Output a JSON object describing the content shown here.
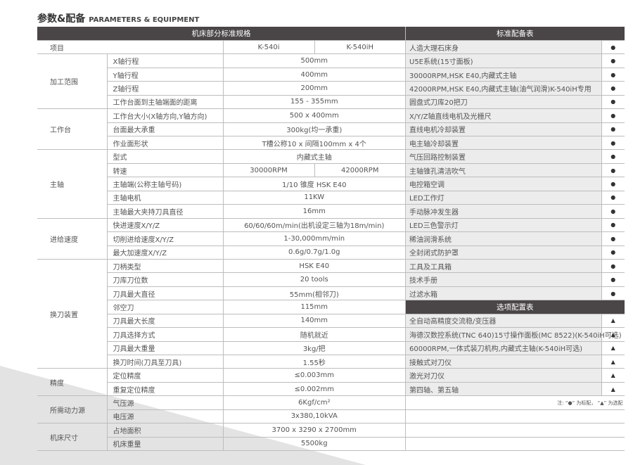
{
  "title": {
    "cn": "参数&配备",
    "en": "PARAMETERS & EQUIPMENT"
  },
  "left": {
    "header": "机床部分标准规格",
    "item_label": "项目",
    "models": [
      "K-540i",
      "K-540iH"
    ],
    "groups": [
      {
        "name": "加工范围",
        "rows": [
          [
            "X轴行程",
            "500mm"
          ],
          [
            "Y轴行程",
            "400mm"
          ],
          [
            "Z轴行程",
            "200mm"
          ],
          [
            "工作台面到主轴端面的距离",
            "155 - 355mm"
          ]
        ]
      },
      {
        "name": "工作台",
        "rows": [
          [
            "工作台大小(X轴方向,Y轴方向)",
            "500 x 400mm"
          ],
          [
            "台面最大承重",
            "300kg(均一承重)"
          ],
          [
            "作业面形状",
            "T槽公称10 x 间隔100mm x 4个"
          ]
        ]
      },
      {
        "name": "主轴",
        "rows": [
          [
            "型式",
            "内藏式主轴"
          ],
          [
            "转速",
            "30000RPM",
            "42000RPM"
          ],
          [
            "主轴端(公称主轴号码)",
            "1/10 锥度 HSK E40"
          ],
          [
            "主轴电机",
            "11KW"
          ],
          [
            "主轴最大夹持刀具直径",
            "16mm"
          ]
        ]
      },
      {
        "name": "进给速度",
        "rows": [
          [
            "快进速度X/Y/Z",
            "60/60/60m/min(出机设定三轴为18m/min)"
          ],
          [
            "切削进给速度X/Y/Z",
            "1-30,000mm/min"
          ],
          [
            "最大加速度X/Y/Z",
            "0.6g/0.7g/1.0g"
          ]
        ]
      },
      {
        "name": "换刀装置",
        "rows": [
          [
            "刀柄类型",
            "HSK E40"
          ],
          [
            "刀库刀位数",
            "20 tools"
          ],
          [
            "刀具最大直径",
            "55mm(相邻刀)"
          ],
          [
            "邻空刀",
            "115mm"
          ],
          [
            "刀具最大长度",
            "140mm"
          ],
          [
            "刀具选择方式",
            "随机就近"
          ],
          [
            "刀具最大重量",
            "3kg/把"
          ],
          [
            "换刀时间(刀具至刀具)",
            "1.55秒"
          ]
        ]
      },
      {
        "name": "精度",
        "rows": [
          [
            "定位精度",
            "≤0.003mm"
          ],
          [
            "重复定位精度",
            "≤0.002mm"
          ]
        ]
      },
      {
        "name": "所需动力源",
        "rows": [
          [
            "气压源",
            "6Kgf/cm²"
          ],
          [
            "电压源",
            "3x380,10kVA"
          ]
        ]
      },
      {
        "name": "机床尺寸",
        "rows": [
          [
            "占地面积",
            "3700 x 3290 x 2700mm"
          ],
          [
            "机床重量",
            "5500kg"
          ]
        ]
      }
    ]
  },
  "right": {
    "standard_header": "标准配备表",
    "standard_symbol": "●",
    "standard": [
      "人造大理石床身",
      "U5E系统(15寸面板)",
      "30000RPM,HSK E40,内藏式主轴",
      " 42000RPM,HSK E40,内藏式主轴(油气润滑)K-540iH专用",
      "圆盘式刀库20把刀",
      "X/Y/Z轴直线电机及光栅尺",
      "直线电机冷却装置",
      "电主轴冷却装置",
      "气压回路控制装置",
      "主轴锥孔清洁吹气",
      "电控箱空调",
      "LED工作灯",
      "手动脉冲发生器",
      "LED三色警示灯",
      "稀油润滑系统",
      "全封闭式防护罩",
      "工具及工具箱",
      "技术手册",
      "过滤水箱"
    ],
    "optional_header": "选项配置表",
    "optional_symbol": "▲",
    "optional": [
      "全自动高精度交流稳/变压器",
      "海德汉数控系统(TNC 640)15寸操作面板(MC 8522)(K-540iH可选)",
      "60000RPM,一体式装刀机构,内藏式主轴(K-540iH可选)",
      "接触式对刀仪",
      "激光对刀仪",
      "第四轴、第五轴"
    ],
    "note": "注: “●” 为标配， “▲” 为选配"
  },
  "colors": {
    "header_bg": "#4a4546",
    "item_bg": "#ececec",
    "decor": "#e3e3e4"
  }
}
